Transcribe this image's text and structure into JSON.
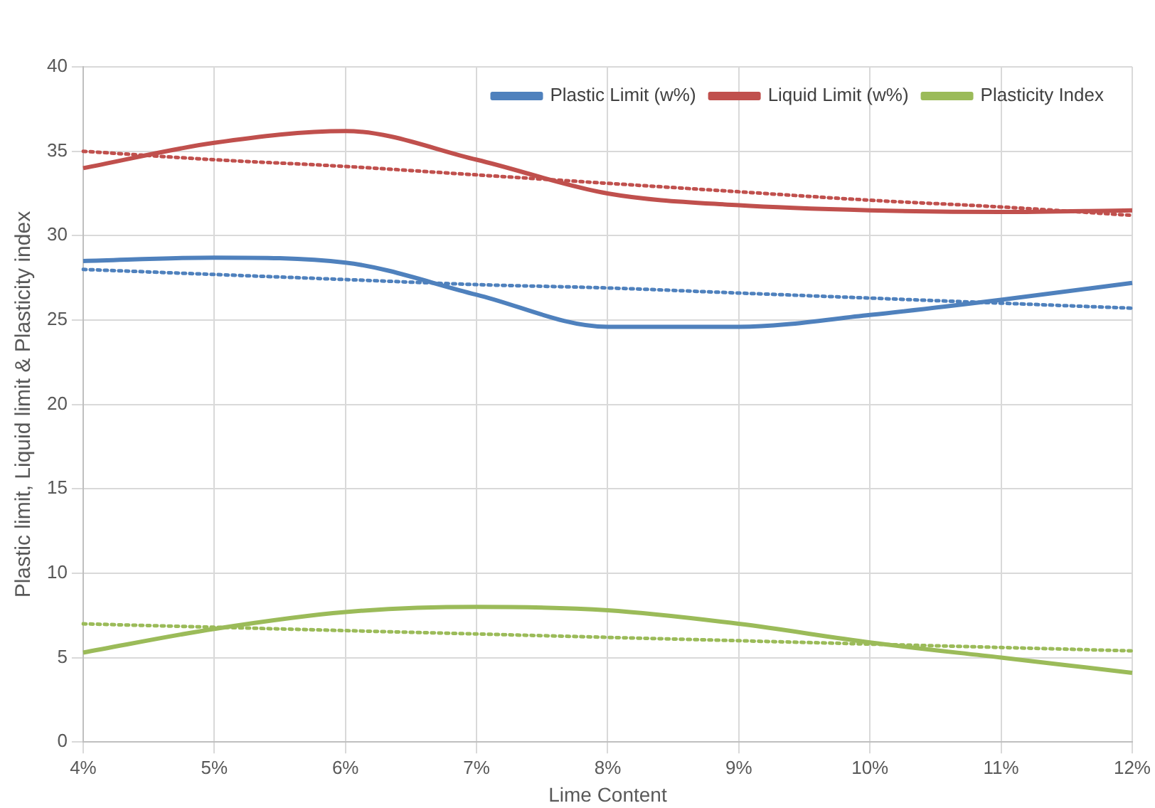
{
  "chart_data": {
    "type": "line",
    "xlabel": "Lime Content",
    "ylabel": "Plastic limit, Liquid limit & Plasticity index",
    "categories": [
      "4%",
      "5%",
      "6%",
      "7%",
      "8%",
      "9%",
      "10%",
      "11%",
      "12%"
    ],
    "ylim": [
      0,
      40
    ],
    "yticks": [
      0,
      5,
      10,
      15,
      20,
      25,
      30,
      35,
      40
    ],
    "grid": true,
    "legend": "top right",
    "marker": "none",
    "series": [
      {
        "name": "Plastic Limit (w%)",
        "color": "#4f81bd",
        "values": [
          28.5,
          28.7,
          28.4,
          26.5,
          24.6,
          24.6,
          25.3,
          26.2,
          27.2
        ]
      },
      {
        "name": "Liquid Limit (w%)",
        "color": "#c0504d",
        "values": [
          34.0,
          35.5,
          36.2,
          34.5,
          32.5,
          31.8,
          31.5,
          31.4,
          31.5
        ]
      },
      {
        "name": "Plasticity Index",
        "color": "#9bbb59",
        "values": [
          5.3,
          6.7,
          7.7,
          8.0,
          7.8,
          7.0,
          5.9,
          5.0,
          4.1
        ]
      },
      {
        "color": "#4f81bd",
        "line_style": "dotted",
        "values": [
          28.0,
          27.7,
          27.4,
          27.1,
          26.9,
          26.6,
          26.3,
          26.0,
          25.7
        ]
      },
      {
        "color": "#c0504d",
        "line_style": "dotted",
        "values": [
          35.0,
          34.5,
          34.1,
          33.6,
          33.1,
          32.6,
          32.1,
          31.7,
          31.2
        ]
      },
      {
        "color": "#9bbb59",
        "line_style": "dotted",
        "values": [
          7.0,
          6.8,
          6.6,
          6.4,
          6.2,
          6.0,
          5.8,
          5.6,
          5.4
        ]
      }
    ]
  }
}
